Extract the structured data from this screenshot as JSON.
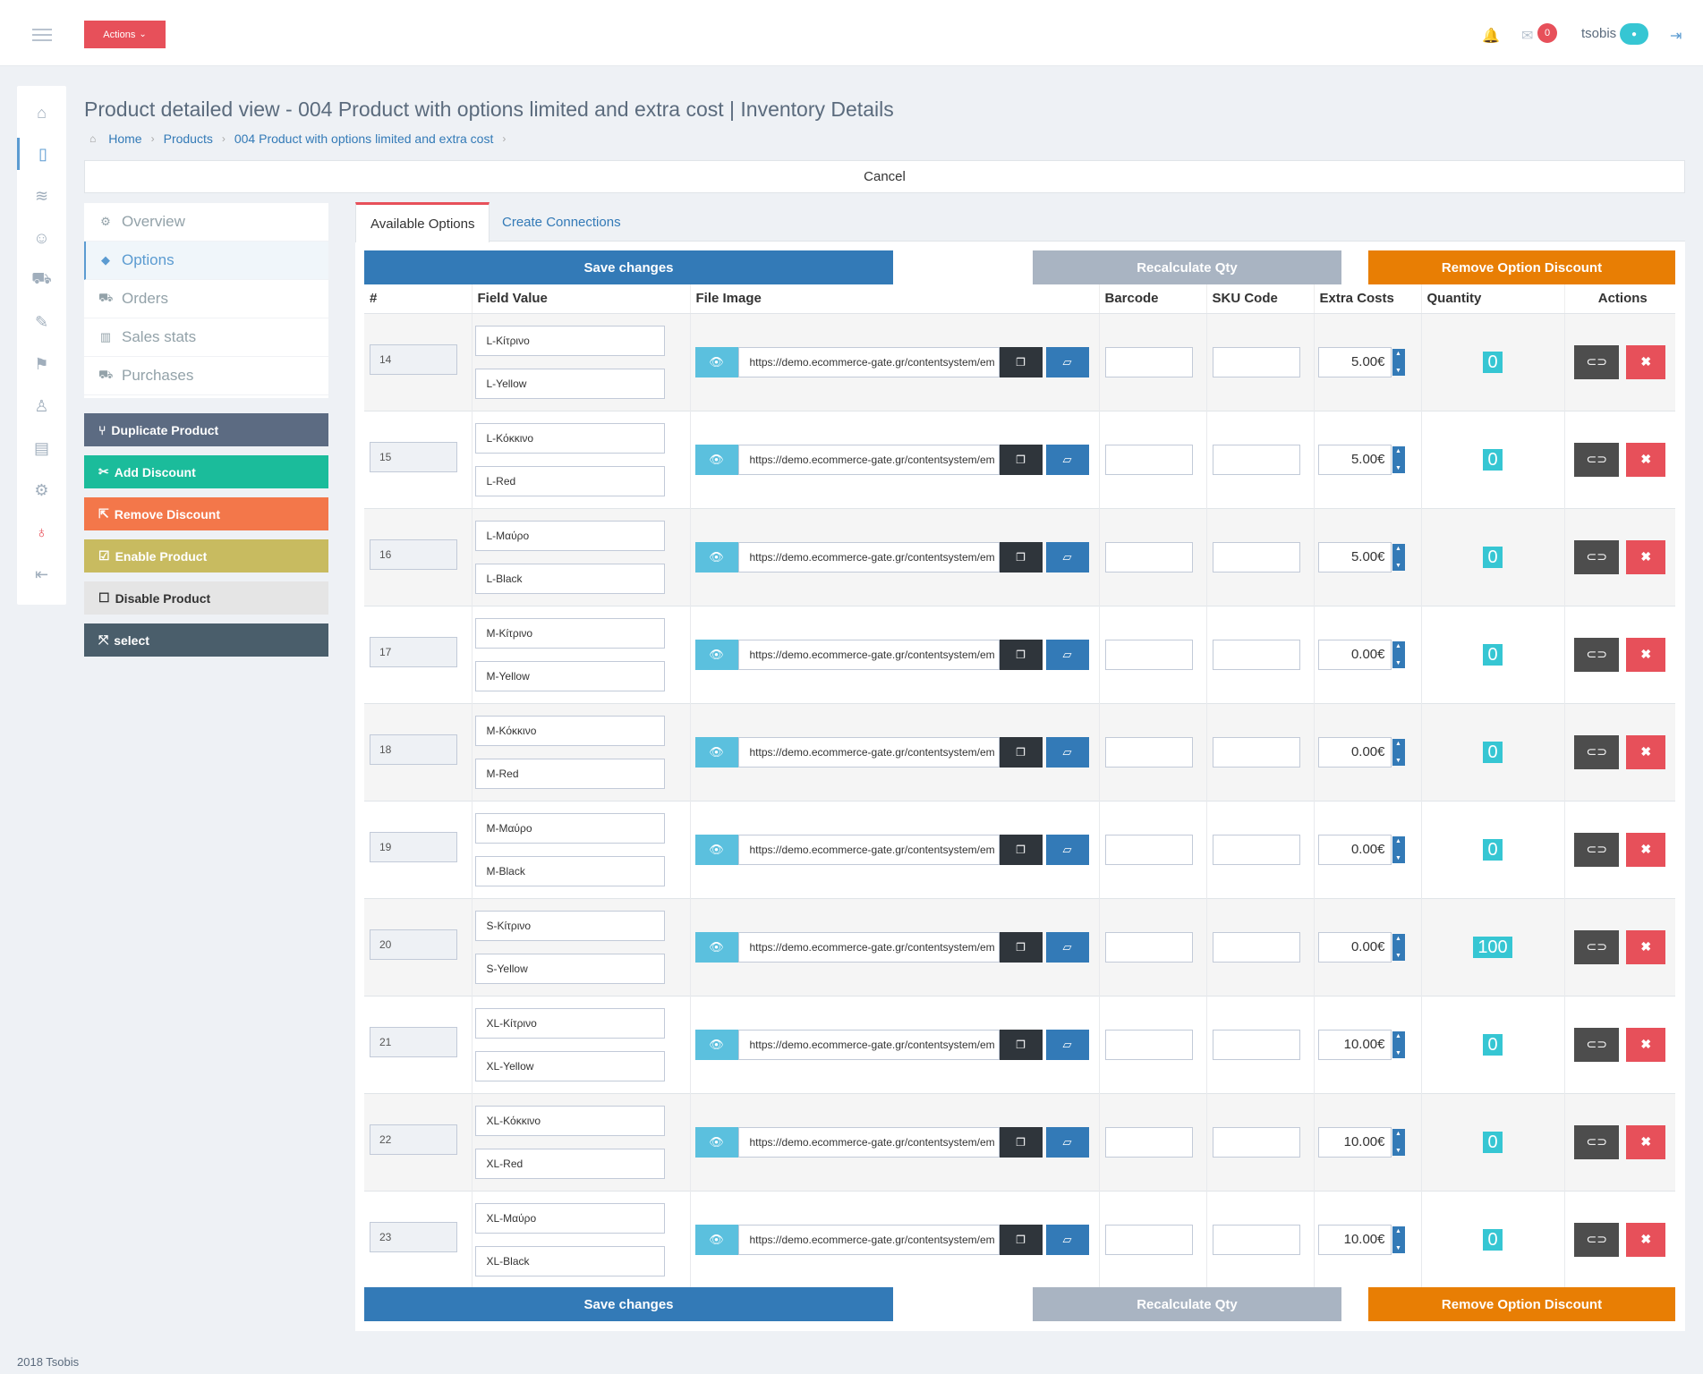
{
  "header": {
    "actions_label": "Actions",
    "actions_caret": "⌄",
    "notification_count": "0",
    "username": "tsobis"
  },
  "page": {
    "title": "Product detailed view - 004 Product with options limited and extra cost | Inventory Details",
    "breadcrumb": [
      "Home",
      "Products",
      "004 Product with options limited and extra cost"
    ],
    "cancel_label": "Cancel"
  },
  "profile_nav": [
    {
      "label": "Overview",
      "icon": "gear-icon"
    },
    {
      "label": "Options",
      "icon": "tags-icon"
    },
    {
      "label": "Orders",
      "icon": "cart-icon"
    },
    {
      "label": "Sales stats",
      "icon": "bar-chart-icon"
    },
    {
      "label": "Purchases",
      "icon": "truck-icon"
    }
  ],
  "side_buttons": [
    {
      "label": "Duplicate Product",
      "color": "#5c6b82"
    },
    {
      "label": "Add Discount",
      "color": "#1bbc9b"
    },
    {
      "label": "Remove Discount",
      "color": "#f3774a"
    },
    {
      "label": "Enable Product",
      "color": "#c8bb60"
    },
    {
      "label": "Disable Product",
      "color": "#e5e5e5"
    },
    {
      "label": "select",
      "color": "#4a5e6b"
    }
  ],
  "tabs": [
    "Available Options",
    "Create Connections"
  ],
  "toolbar": {
    "save_label": "Save changes",
    "recalc_label": "Recalculate Qty",
    "remove_discount_label": "Remove Option Discount"
  },
  "table": {
    "columns": [
      "#",
      "Field Value",
      "File Image",
      "Barcode",
      "SKU Code",
      "Extra Costs",
      "Quantity",
      "Actions"
    ],
    "rows": [
      {
        "id": "14",
        "values": [
          "L-Κίτρινο",
          "L-Yellow"
        ],
        "url": "https://demo.ecommerce-gate.gr/contentsystem/em",
        "barcode": "",
        "sku": "",
        "extra": "5.00€",
        "qty": "0"
      },
      {
        "id": "15",
        "values": [
          "L-Κόκκινο",
          "L-Red"
        ],
        "url": "https://demo.ecommerce-gate.gr/contentsystem/em",
        "barcode": "",
        "sku": "",
        "extra": "5.00€",
        "qty": "0"
      },
      {
        "id": "16",
        "values": [
          "L-Μαύρο",
          "L-Black"
        ],
        "url": "https://demo.ecommerce-gate.gr/contentsystem/em",
        "barcode": "",
        "sku": "",
        "extra": "5.00€",
        "qty": "0"
      },
      {
        "id": "17",
        "values": [
          "M-Κίτρινο",
          "M-Yellow"
        ],
        "url": "https://demo.ecommerce-gate.gr/contentsystem/em",
        "barcode": "",
        "sku": "",
        "extra": "0.00€",
        "qty": "0"
      },
      {
        "id": "18",
        "values": [
          "M-Κόκκινο",
          "M-Red"
        ],
        "url": "https://demo.ecommerce-gate.gr/contentsystem/em",
        "barcode": "",
        "sku": "",
        "extra": "0.00€",
        "qty": "0"
      },
      {
        "id": "19",
        "values": [
          "M-Μαύρο",
          "M-Black"
        ],
        "url": "https://demo.ecommerce-gate.gr/contentsystem/em",
        "barcode": "",
        "sku": "",
        "extra": "0.00€",
        "qty": "0"
      },
      {
        "id": "20",
        "values": [
          "S-Κίτρινο",
          "S-Yellow"
        ],
        "url": "https://demo.ecommerce-gate.gr/contentsystem/em",
        "barcode": "",
        "sku": "",
        "extra": "0.00€",
        "qty": "100"
      },
      {
        "id": "21",
        "values": [
          "XL-Κίτρινο",
          "XL-Yellow"
        ],
        "url": "https://demo.ecommerce-gate.gr/contentsystem/em",
        "barcode": "",
        "sku": "",
        "extra": "10.00€",
        "qty": "0"
      },
      {
        "id": "22",
        "values": [
          "XL-Κόκκινο",
          "XL-Red"
        ],
        "url": "https://demo.ecommerce-gate.gr/contentsystem/em",
        "barcode": "",
        "sku": "",
        "extra": "10.00€",
        "qty": "0"
      },
      {
        "id": "23",
        "values": [
          "XL-Μαύρο",
          "XL-Black"
        ],
        "url": "https://demo.ecommerce-gate.gr/contentsystem/em",
        "barcode": "",
        "sku": "",
        "extra": "10.00€",
        "qty": "0"
      }
    ]
  },
  "footer": "2018 Tsobis"
}
